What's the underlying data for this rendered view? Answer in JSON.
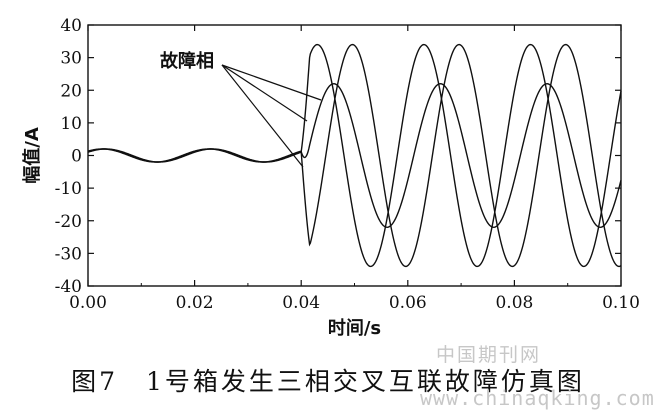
{
  "chart_data": {
    "type": "line",
    "xlabel": "时间/s",
    "ylabel": "幅值/A",
    "xlim": [
      0.0,
      0.1
    ],
    "ylim": [
      -40,
      40
    ],
    "x_ticks": [
      "0.00",
      "0.02",
      "0.04",
      "0.06",
      "0.08",
      "0.10"
    ],
    "y_ticks": [
      "40",
      "30",
      "20",
      "10",
      "0",
      "-10",
      "-20",
      "-30",
      "-40"
    ],
    "grid": false,
    "legend": "none",
    "annotation": "故障相",
    "fault_time": 0.04,
    "frequency_hz": 50,
    "pre_fault_amplitude": 2,
    "series": [
      {
        "peak": 22
      },
      {
        "peak": 34
      },
      {
        "peak": 34
      }
    ]
  },
  "caption": "图7　1号箱发生三相交叉互联故障仿真图",
  "watermark": {
    "line1": "中国期刊网",
    "line2": "www.chinaqking.com"
  }
}
